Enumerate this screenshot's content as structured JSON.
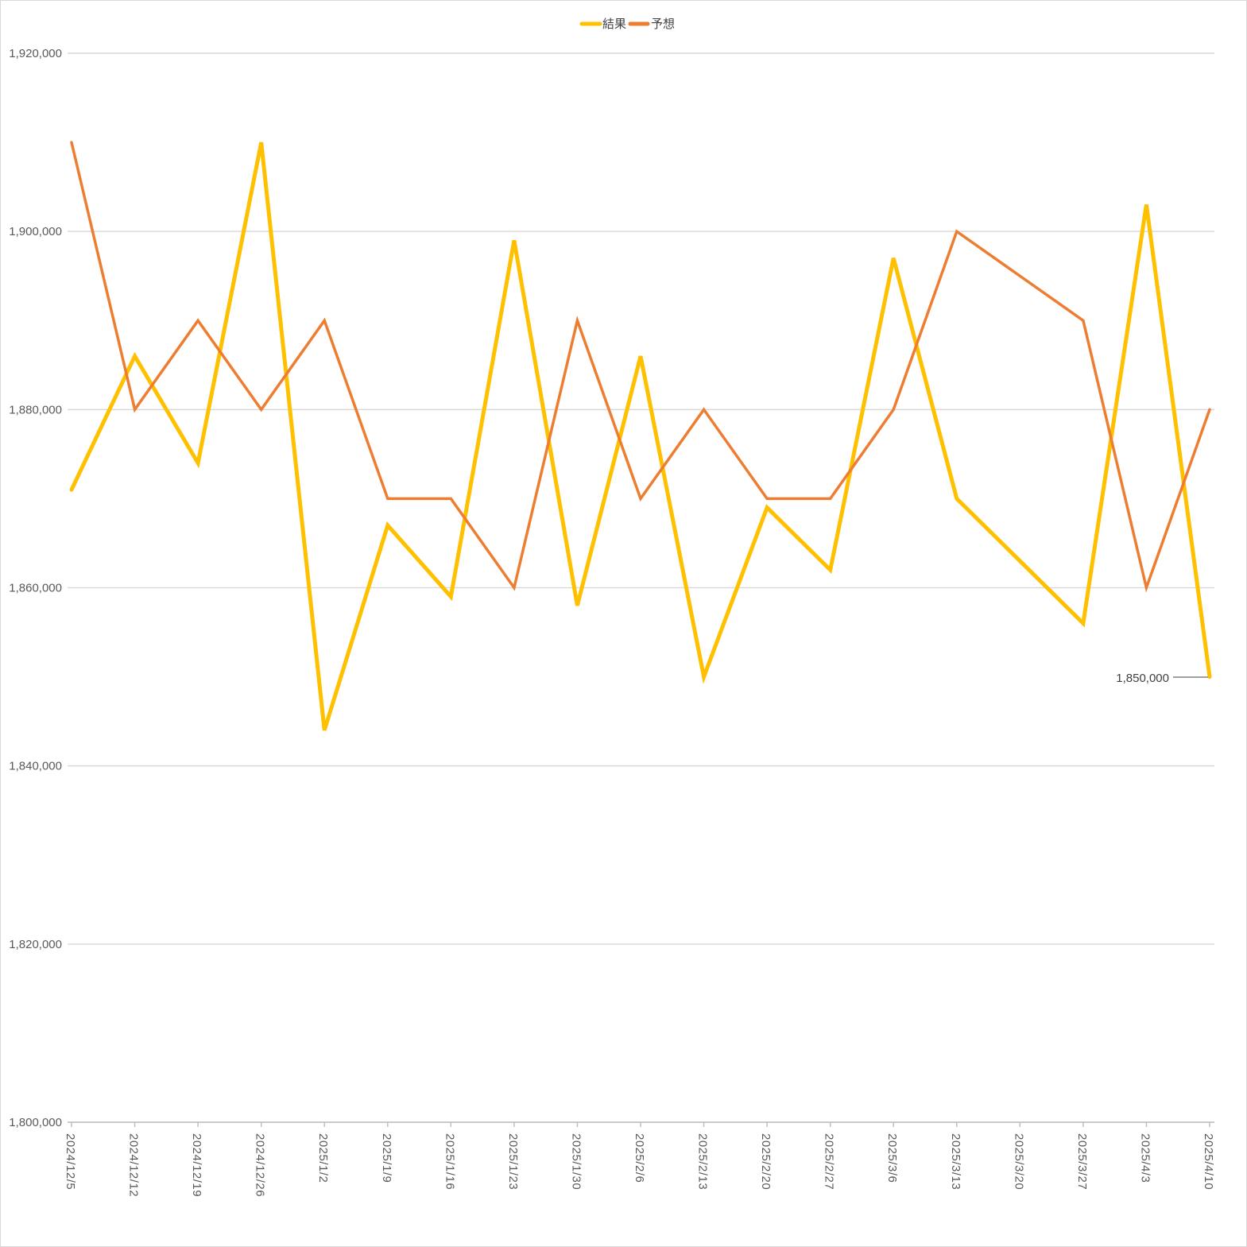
{
  "chart_data": {
    "type": "line",
    "title": "",
    "xlabel": "",
    "ylabel": "",
    "categories": [
      "2024/12/5",
      "2024/12/12",
      "2024/12/19",
      "2024/12/26",
      "2025/1/2",
      "2025/1/9",
      "2025/1/16",
      "2025/1/23",
      "2025/1/30",
      "2025/2/6",
      "2025/2/13",
      "2025/2/20",
      "2025/2/27",
      "2025/3/6",
      "2025/3/13",
      "2025/3/20",
      "2025/3/27",
      "2025/4/3",
      "2025/4/10"
    ],
    "series": [
      {
        "name": "結果",
        "color": "#FFC000",
        "values": [
          1871000,
          1886000,
          1874000,
          1910000,
          1844000,
          1867000,
          1859000,
          1899000,
          1858000,
          1886000,
          1850000,
          1869000,
          1862000,
          1897000,
          1870000,
          null,
          1856000,
          1903000,
          1850000
        ]
      },
      {
        "name": "予想",
        "color": "#ED7D31",
        "values": [
          1910000,
          1880000,
          1890000,
          1880000,
          1890000,
          1870000,
          1870000,
          1860000,
          1890000,
          1870000,
          1880000,
          1870000,
          1870000,
          1880000,
          1900000,
          null,
          1890000,
          1860000,
          1880000
        ]
      }
    ],
    "ylim": [
      1800000,
      1920000
    ],
    "yticks": [
      "1,800,000",
      "1,820,000",
      "1,840,000",
      "1,860,000",
      "1,880,000",
      "1,900,000",
      "1,920,000"
    ],
    "grid": true,
    "legend": "top-center",
    "annotations": [
      {
        "series": "結果",
        "category": "2025/4/10",
        "text": "1,850,000"
      }
    ]
  }
}
